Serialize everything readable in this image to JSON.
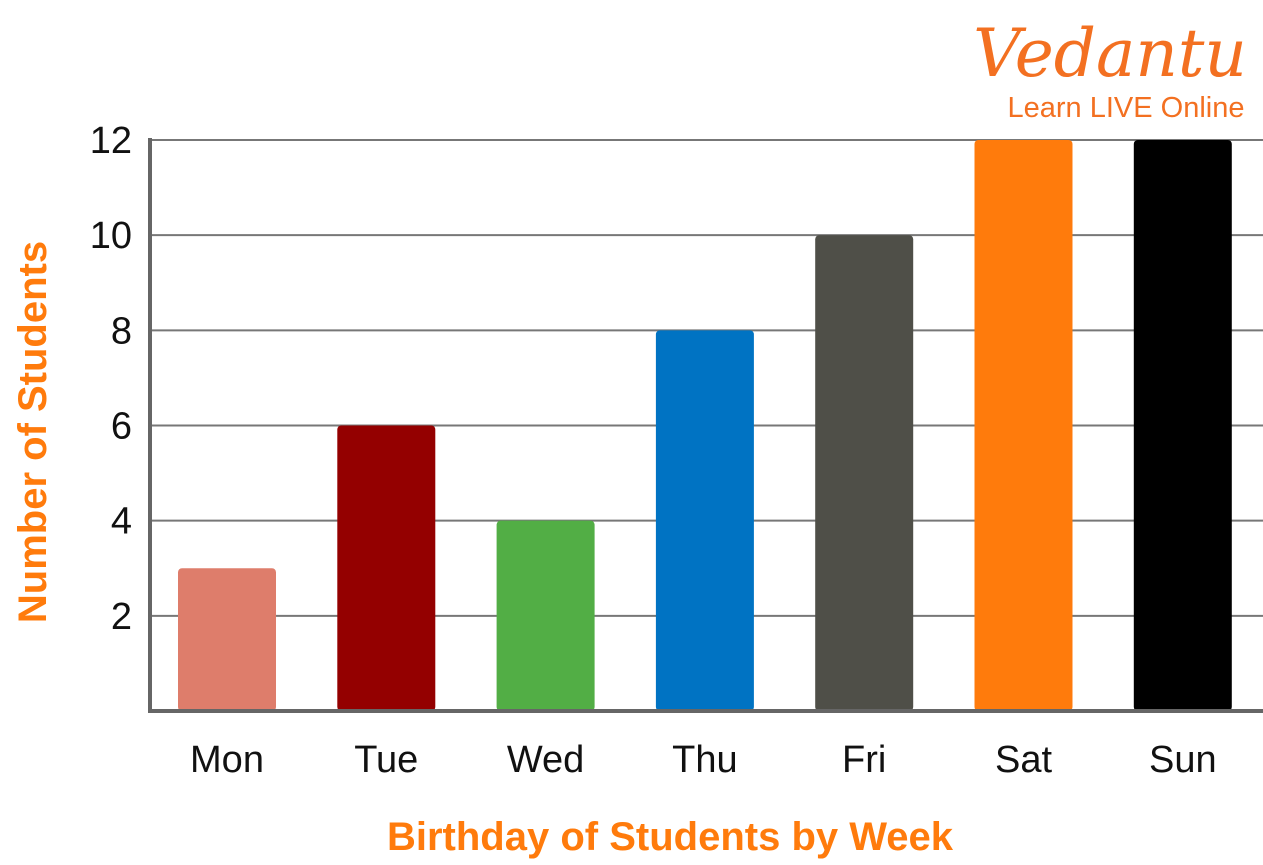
{
  "logo": {
    "name": "Vedantu",
    "tagline": "Learn LIVE Online"
  },
  "chart_data": {
    "type": "bar",
    "title": "",
    "xlabel": "Birthday of Students by Week",
    "ylabel": "Number of Students",
    "categories": [
      "Mon",
      "Tue",
      "Wed",
      "Thu",
      "Fri",
      "Sat",
      "Sun"
    ],
    "values": [
      3,
      6,
      4,
      8,
      10,
      12,
      12
    ],
    "colors": [
      "#de7d6b",
      "#940000",
      "#52ae45",
      "#0073c3",
      "#4f4f48",
      "#ff7b0c",
      "#000000"
    ],
    "ylim": [
      0,
      12
    ],
    "yticks": [
      2,
      4,
      6,
      8,
      10,
      12
    ],
    "grid": true,
    "legend": "none"
  }
}
